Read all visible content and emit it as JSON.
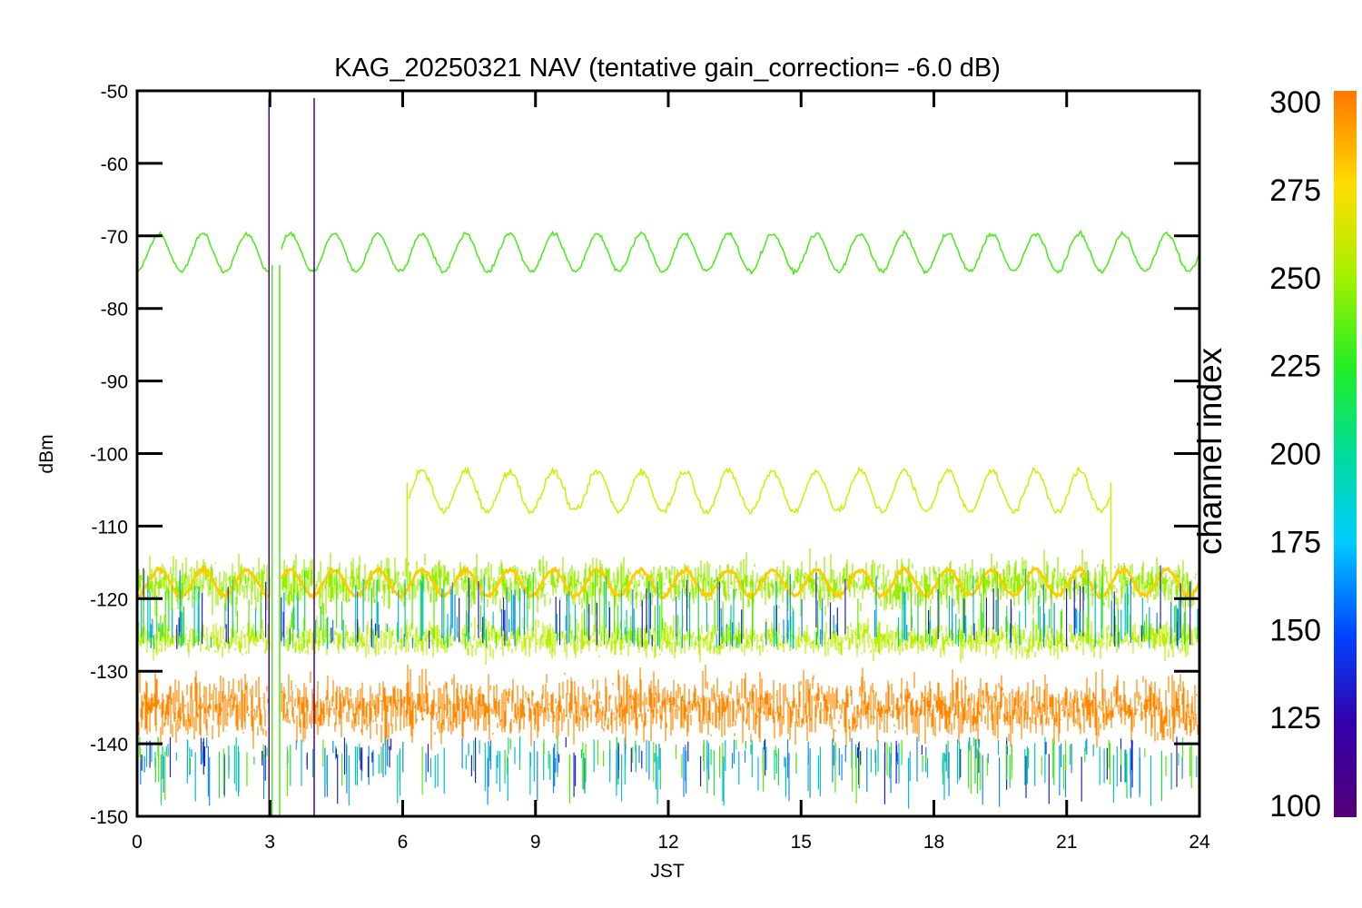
{
  "chart_data": {
    "type": "line",
    "title": "KAG_20250321 NAV (tentative gain_correction= -6.0 dB)",
    "xlabel": "JST",
    "ylabel": "dBm",
    "xlim": [
      0,
      24
    ],
    "ylim": [
      -150,
      -50
    ],
    "xticks": [
      0,
      3,
      6,
      9,
      12,
      15,
      18,
      21,
      24
    ],
    "yticks": [
      -50,
      -60,
      -70,
      -80,
      -90,
      -100,
      -110,
      -120,
      -130,
      -140,
      -150
    ],
    "grid": false,
    "colorbar": {
      "title": "channel index",
      "range": [
        100,
        300
      ],
      "ticks": [
        100,
        125,
        150,
        175,
        200,
        225,
        250,
        275,
        300
      ]
    },
    "series": [
      {
        "channel": 230,
        "color": "#44ee10",
        "x_start": 0,
        "x_end": 24,
        "center": -72.3,
        "amplitude": 2.6,
        "period_h": 0.99,
        "noise": 0.3
      },
      {
        "channel": 260,
        "color": "#ccf000",
        "x_start": 6.1,
        "x_end": 22.0,
        "center": -105.2,
        "amplitude": 2.8,
        "period_h": 0.99,
        "noise": 0.5
      },
      {
        "channel": 285,
        "color": "#ffcc00",
        "x_start": 0,
        "x_end": 24,
        "center": -117.8,
        "amplitude": 1.8,
        "period_h": 0.99,
        "noise": 0.3
      }
    ],
    "noise_bands": [
      {
        "color": "#99ee00",
        "center": -118,
        "spread": 3.5
      },
      {
        "color": "#bbf000",
        "center": -125.5,
        "spread": 2.5
      },
      {
        "color": "#ff8800",
        "center": -135,
        "spread": 4.5
      }
    ],
    "gap": [
      3.0,
      3.25
    ]
  }
}
